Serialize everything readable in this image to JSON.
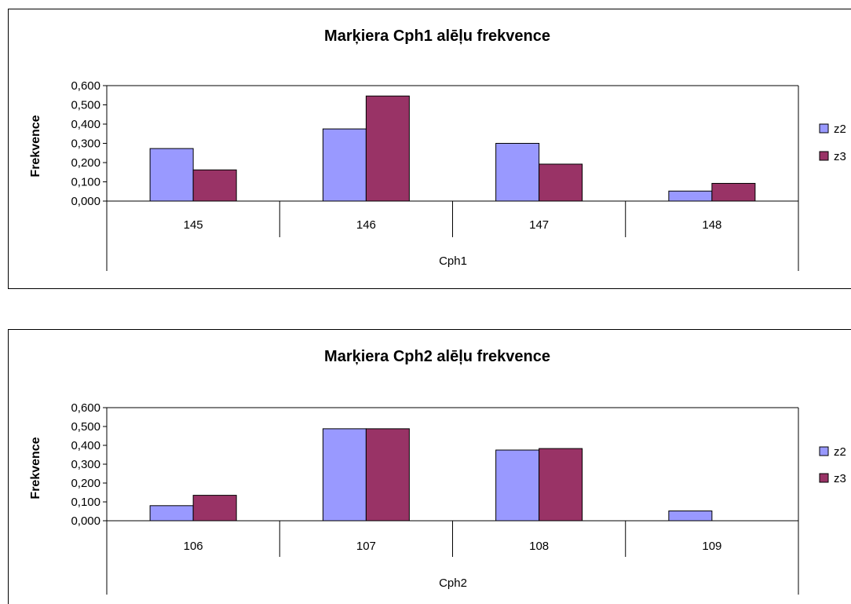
{
  "chart_data": [
    {
      "type": "bar",
      "title": "Marķiera Cph1 alēļu frekvence",
      "xlabel": "Cph1",
      "ylabel": "Frekvence",
      "categories": [
        "145",
        "146",
        "147",
        "148"
      ],
      "series": [
        {
          "name": "z2",
          "values": [
            0.273,
            0.375,
            0.3,
            0.052
          ]
        },
        {
          "name": "z3",
          "values": [
            0.162,
            0.546,
            0.192,
            0.092
          ]
        }
      ],
      "ylim": [
        0,
        0.6
      ],
      "yticks": [
        "0,000",
        "0,100",
        "0,200",
        "0,300",
        "0,400",
        "0,500",
        "0,600"
      ],
      "grid": false,
      "legend": "right"
    },
    {
      "type": "bar",
      "title": "Marķiera Cph2 alēļu frekvence",
      "xlabel": "Cph2",
      "ylabel": "Frekvence",
      "categories": [
        "106",
        "107",
        "108",
        "109"
      ],
      "series": [
        {
          "name": "z2",
          "values": [
            0.08,
            0.488,
            0.375,
            0.052
          ]
        },
        {
          "name": "z3",
          "values": [
            0.135,
            0.488,
            0.383,
            0.0
          ]
        }
      ],
      "ylim": [
        0,
        0.6
      ],
      "yticks": [
        "0,000",
        "0,100",
        "0,200",
        "0,300",
        "0,400",
        "0,500",
        "0,600"
      ],
      "grid": false,
      "legend": "right"
    }
  ],
  "colors": {
    "z2": "#9999ff",
    "z3": "#993366"
  }
}
